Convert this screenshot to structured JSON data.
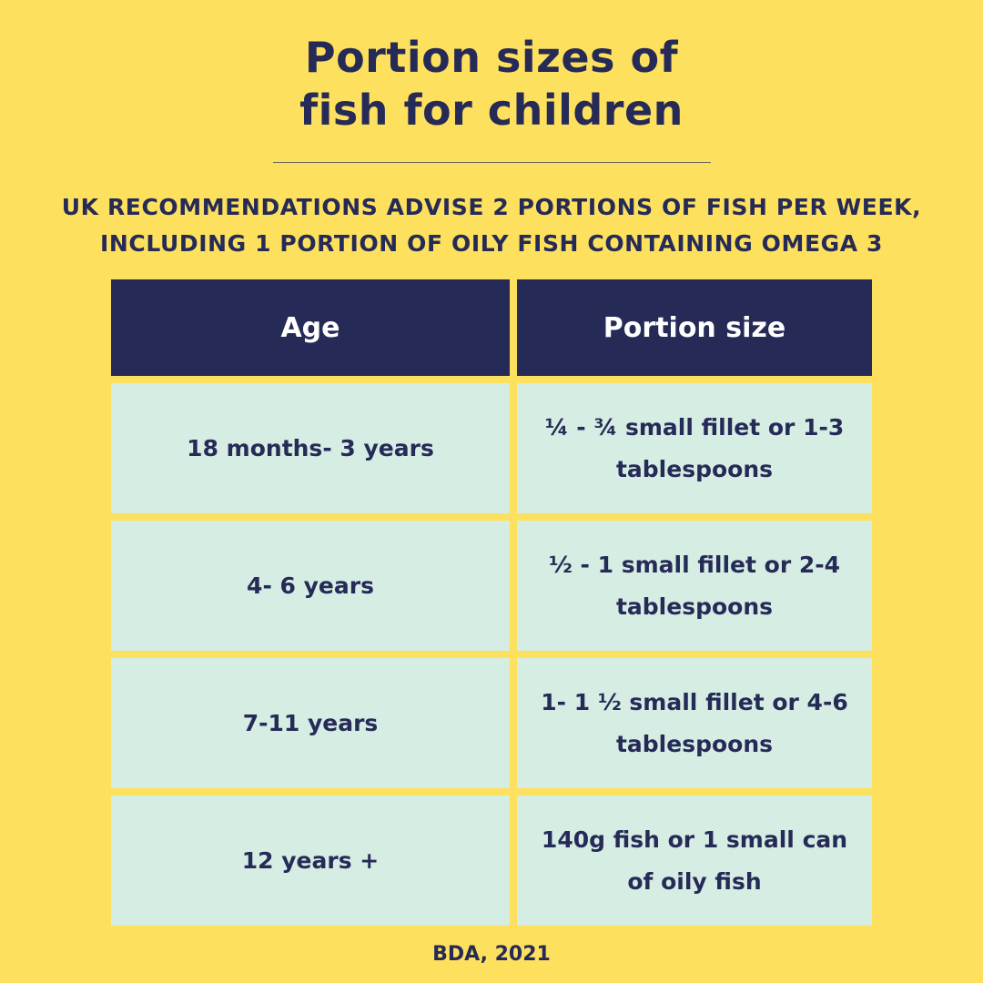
{
  "title": {
    "line1": "Portion sizes of",
    "line2": "fish for children"
  },
  "subtitle": {
    "line1": "UK RECOMMENDATIONS ADVISE 2 PORTIONS OF FISH PER WEEK,",
    "line2": "INCLUDING 1 PORTION OF OILY FISH CONTAINING OMEGA 3"
  },
  "table": {
    "headers": [
      "Age",
      "Portion size"
    ],
    "rows": [
      {
        "age": "18 months- 3 years",
        "portion": "¼ - ¾ small fillet or 1-3 tablespoons"
      },
      {
        "age": "4- 6 years",
        "portion": "½ - 1 small fillet or 2-4 tablespoons"
      },
      {
        "age": "7-11 years",
        "portion": "1- 1 ½ small fillet or 4-6 tablespoons"
      },
      {
        "age": "12 years  +",
        "portion": "140g fish or 1 small can of oily fish"
      }
    ]
  },
  "source": "BDA, 2021",
  "colors": {
    "background": "#FDE05D",
    "navy": "#262A57",
    "mint": "#D5EDE3"
  }
}
